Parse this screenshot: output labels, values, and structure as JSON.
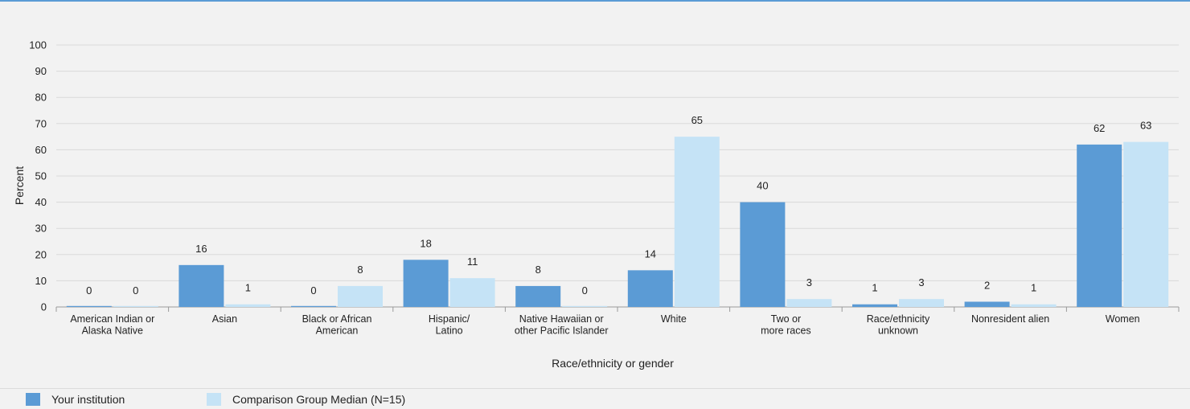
{
  "chart_data": {
    "type": "bar",
    "title": "",
    "xlabel": "Race/ethnicity or gender",
    "ylabel": "Percent",
    "ylim": [
      0,
      100
    ],
    "yticks": [
      0,
      10,
      20,
      30,
      40,
      50,
      60,
      70,
      80,
      90,
      100
    ],
    "grid": true,
    "legend_position": "bottom-left",
    "categories": [
      [
        "American Indian or",
        "Alaska Native"
      ],
      [
        "Asian"
      ],
      [
        "Black or African",
        "American"
      ],
      [
        "Hispanic/",
        "Latino"
      ],
      [
        "Native Hawaiian or",
        "other Pacific Islander"
      ],
      [
        "White"
      ],
      [
        "Two or",
        "more races"
      ],
      [
        "Race/ethnicity",
        "unknown"
      ],
      [
        "Nonresident alien"
      ],
      [
        "Women"
      ]
    ],
    "series": [
      {
        "name": "Your institution",
        "color": "#5b9bd5",
        "values": [
          0,
          16,
          0,
          18,
          8,
          14,
          40,
          1,
          2,
          62
        ],
        "labels": [
          "0",
          "16",
          "0",
          "18",
          "8",
          "14",
          "40",
          "1",
          "2",
          "62"
        ]
      },
      {
        "name": "Comparison Group Median (N=15)",
        "color": "#c5e3f6",
        "values": [
          0,
          1,
          8,
          11,
          0,
          65,
          3,
          3,
          1,
          63
        ],
        "labels": [
          "0",
          "1",
          "8",
          "11",
          "0",
          "65",
          "3",
          "3",
          "1",
          "63"
        ]
      }
    ]
  }
}
